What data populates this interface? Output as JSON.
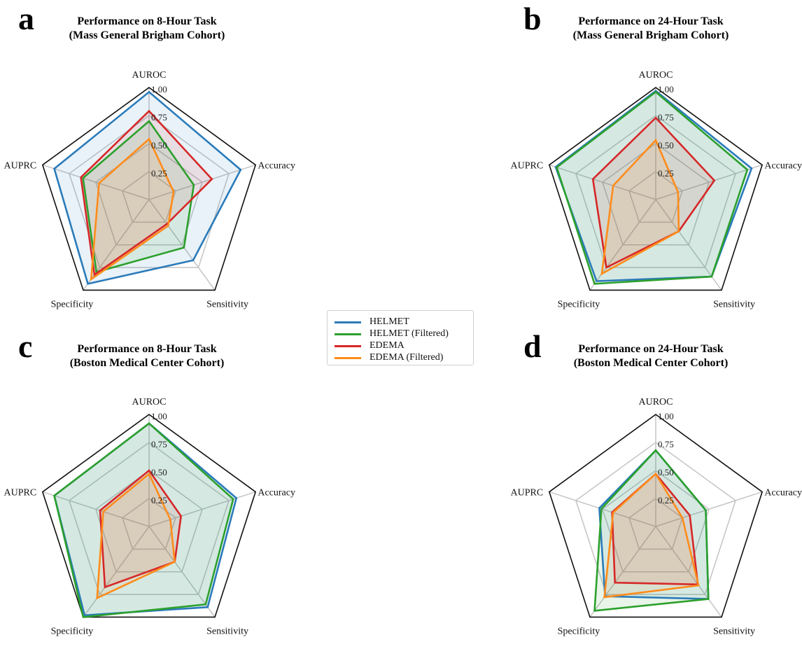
{
  "legend": [
    {
      "name": "HELMET",
      "color": "#2b7bba"
    },
    {
      "name": "HELMET (Filtered)",
      "color": "#2ca02c"
    },
    {
      "name": "EDEMA",
      "color": "#d62728"
    },
    {
      "name": "EDEMA (Filtered)",
      "color": "#ff8c1a"
    }
  ],
  "chart_data": [
    {
      "panel": "a",
      "type": "radar",
      "title": "Performance on 8-Hour Task",
      "subtitle": "(Mass General Brigham Cohort)",
      "axes": [
        "AUROC",
        "Accuracy",
        "Sensitivity",
        "Specificity",
        "AUPRC"
      ],
      "rlim": [
        0,
        1
      ],
      "rticks": [
        "0.25",
        "0.50",
        "0.75",
        "1.00"
      ],
      "series": [
        {
          "name": "HELMET",
          "values": [
            0.96,
            0.86,
            0.67,
            0.93,
            0.89
          ]
        },
        {
          "name": "HELMET (Filtered)",
          "values": [
            0.7,
            0.42,
            0.53,
            0.8,
            0.62
          ]
        },
        {
          "name": "EDEMA",
          "values": [
            0.79,
            0.59,
            0.27,
            0.83,
            0.64
          ]
        },
        {
          "name": "EDEMA (Filtered)",
          "values": [
            0.54,
            0.23,
            0.29,
            0.88,
            0.47
          ]
        }
      ]
    },
    {
      "panel": "b",
      "type": "radar",
      "title": "Performance on 24-Hour Task",
      "subtitle": "(Mass General Brigham Cohort)",
      "axes": [
        "AUROC",
        "Accuracy",
        "Sensitivity",
        "Specificity",
        "AUPRC"
      ],
      "rlim": [
        0,
        1
      ],
      "rticks": [
        "0.25",
        "0.50",
        "0.75",
        "1.00"
      ],
      "series": [
        {
          "name": "HELMET",
          "values": [
            0.97,
            0.9,
            0.85,
            0.9,
            0.94
          ]
        },
        {
          "name": "HELMET (Filtered)",
          "values": [
            0.96,
            0.86,
            0.85,
            0.93,
            0.93
          ]
        },
        {
          "name": "EDEMA",
          "values": [
            0.73,
            0.55,
            0.35,
            0.75,
            0.59
          ]
        },
        {
          "name": "EDEMA (Filtered)",
          "values": [
            0.53,
            0.21,
            0.35,
            0.82,
            0.4
          ]
        }
      ]
    },
    {
      "panel": "c",
      "type": "radar",
      "title": "Performance on 8-Hour Task",
      "subtitle": "(Boston Medical Center Cohort)",
      "axes": [
        "AUROC",
        "Accuracy",
        "Sensitivity",
        "Specificity",
        "AUPRC"
      ],
      "rlim": [
        0,
        1
      ],
      "rticks": [
        "0.25",
        "0.50",
        "0.75",
        "1.00"
      ],
      "series": [
        {
          "name": "HELMET",
          "values": [
            0.92,
            0.82,
            0.89,
            0.98,
            0.89
          ]
        },
        {
          "name": "HELMET (Filtered)",
          "values": [
            0.92,
            0.79,
            0.86,
            1.0,
            0.89
          ]
        },
        {
          "name": "EDEMA",
          "values": [
            0.5,
            0.3,
            0.39,
            0.67,
            0.46
          ]
        },
        {
          "name": "EDEMA (Filtered)",
          "values": [
            0.47,
            0.2,
            0.39,
            0.79,
            0.43
          ]
        }
      ]
    },
    {
      "panel": "d",
      "type": "radar",
      "title": "Performance on 24-Hour Task",
      "subtitle": "(Boston Medical Center Cohort)",
      "axes": [
        "AUROC",
        "Accuracy",
        "Sensitivity",
        "Specificity",
        "AUPRC"
      ],
      "rlim": [
        0,
        1
      ],
      "rticks": [
        "0.25",
        "0.50",
        "0.75",
        "1.00"
      ],
      "series": [
        {
          "name": "HELMET",
          "values": [
            0.68,
            0.47,
            0.8,
            0.77,
            0.53
          ]
        },
        {
          "name": "HELMET (Filtered)",
          "values": [
            0.68,
            0.47,
            0.8,
            0.93,
            0.51
          ]
        },
        {
          "name": "EDEMA",
          "values": [
            0.47,
            0.32,
            0.64,
            0.62,
            0.41
          ]
        },
        {
          "name": "EDEMA (Filtered)",
          "values": [
            0.47,
            0.25,
            0.65,
            0.78,
            0.4
          ]
        }
      ]
    }
  ]
}
